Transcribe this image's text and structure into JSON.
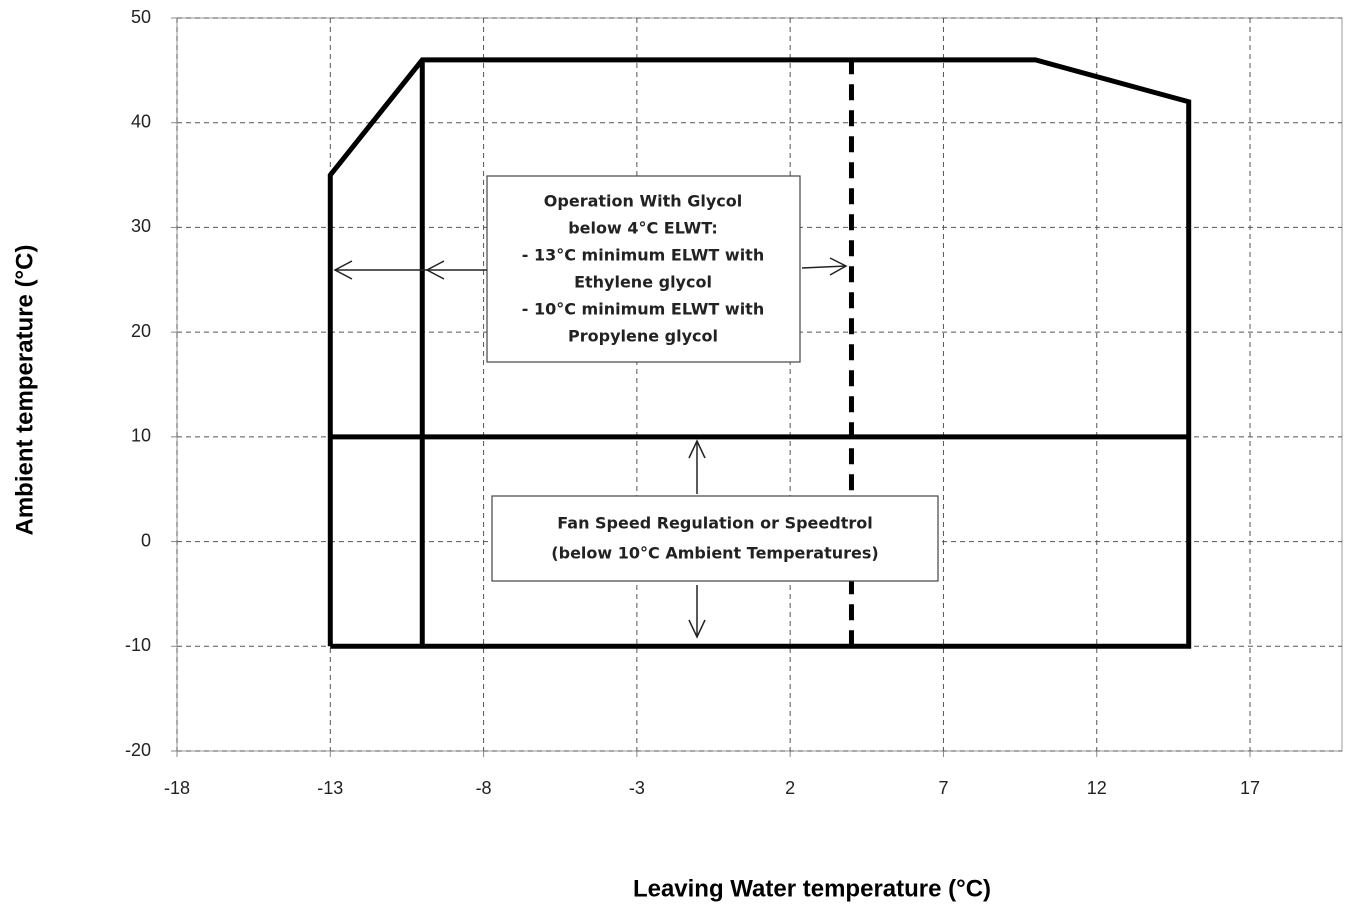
{
  "chart_data": {
    "type": "line",
    "x_label": "Leaving Water temperature (°C)",
    "y_label": "Ambient temperature (°C)",
    "xlim": [
      -18,
      20
    ],
    "xticks": [
      -18,
      -13,
      -8,
      -3,
      2,
      7,
      12,
      17
    ],
    "ylim": [
      -20,
      50
    ],
    "yticks": [
      -20,
      -10,
      0,
      10,
      20,
      30,
      40,
      50
    ],
    "grid": true,
    "series": [
      {
        "color": "#000000",
        "dashed": false,
        "x": [
          -13,
          -13,
          -10,
          10,
          15,
          15,
          -13
        ],
        "values": [
          -10,
          35,
          46,
          46,
          42,
          -10,
          -10
        ]
      },
      {
        "color": "#000000",
        "dashed": false,
        "x": [
          -10,
          -10
        ],
        "values": [
          -10,
          46
        ]
      },
      {
        "color": "#000000",
        "dashed": false,
        "x": [
          -13,
          15
        ],
        "values": [
          10,
          10
        ]
      },
      {
        "color": "#000000",
        "dashed": true,
        "x": [
          4,
          4
        ],
        "values": [
          -10,
          46
        ]
      }
    ],
    "annotations": [
      [
        "Operation With Glycol",
        "below 4°C ELWT:",
        "- 13°C minimum ELWT with",
        "Ethylene glycol",
        "- 10°C minimum ELWT with",
        "Propylene glycol"
      ],
      [
        "Fan Speed Regulation or Speedtrol",
        "(below 10°C Ambient Temperatures)"
      ]
    ]
  }
}
